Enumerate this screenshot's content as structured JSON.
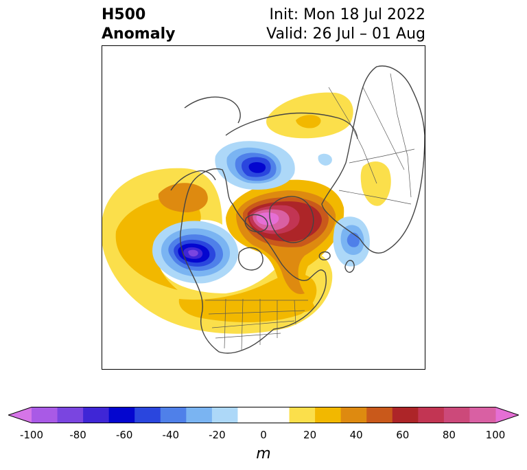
{
  "header": {
    "field_line1": "H500",
    "field_line2": "Anomaly",
    "init_text": "Init: Mon 18 Jul 2022",
    "valid_text": "Valid: 26 Jul – 01 Aug"
  },
  "colorbar": {
    "unit": "m",
    "ticks": [
      "-100",
      "-80",
      "-60",
      "-40",
      "-20",
      "0",
      "20",
      "40",
      "60",
      "80",
      "100"
    ],
    "range": [
      -100,
      100
    ],
    "step": 10,
    "colors": [
      "#d675e8",
      "#a95ae6",
      "#7a45e0",
      "#3f26d6",
      "#0406cf",
      "#2a46de",
      "#4f80e9",
      "#7ab4f2",
      "#add8f8",
      "#ffffff",
      "#ffffff",
      "#fbdf4b",
      "#f2b800",
      "#de8a10",
      "#c9591b",
      "#ad2528",
      "#c23553",
      "#cc497a",
      "#d960a3",
      "#e56fd5"
    ],
    "extend": "both"
  },
  "map": {
    "projection": "polar-stereographic",
    "features": [
      "coastlines",
      "country-borders",
      "us-state-borders"
    ]
  }
}
